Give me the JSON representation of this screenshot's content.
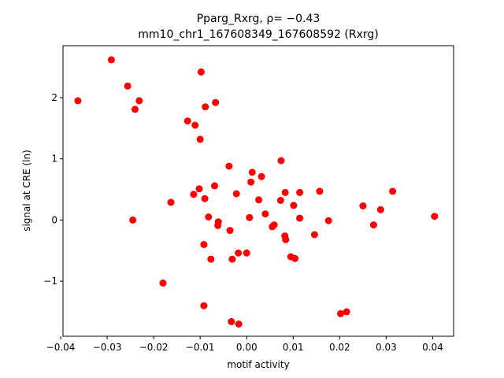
{
  "chart_data": {
    "type": "scatter",
    "title_line1": "Pparg_Rxrg, ρ= −0.43",
    "title_line2": "mm10_chr1_167608349_167608592 (Rxrg)",
    "xlabel": "motif activity",
    "ylabel": "signal at CRE (ln)",
    "xlim": [
      -0.0395,
      0.0445
    ],
    "ylim": [
      -1.9,
      2.85
    ],
    "x_ticks": [
      -0.04,
      -0.03,
      -0.02,
      -0.01,
      0.0,
      0.01,
      0.02,
      0.03,
      0.04
    ],
    "x_tick_labels": [
      "−0.04",
      "−0.03",
      "−0.02",
      "−0.01",
      "0.00",
      "0.01",
      "0.02",
      "0.03",
      "0.04"
    ],
    "y_ticks": [
      -1,
      0,
      1,
      2
    ],
    "y_tick_labels": [
      "−1",
      "0",
      "1",
      "2"
    ],
    "grid": false,
    "marker_color": "#ff0000",
    "points": [
      {
        "x": -0.0363,
        "y": 1.95
      },
      {
        "x": -0.0291,
        "y": 2.62
      },
      {
        "x": -0.0256,
        "y": 2.19
      },
      {
        "x": -0.024,
        "y": 1.81
      },
      {
        "x": -0.0231,
        "y": 1.95
      },
      {
        "x": -0.0245,
        "y": 0.0
      },
      {
        "x": -0.018,
        "y": -1.03
      },
      {
        "x": -0.0163,
        "y": 0.29
      },
      {
        "x": -0.0127,
        "y": 1.62
      },
      {
        "x": -0.0111,
        "y": 1.55
      },
      {
        "x": -0.0098,
        "y": 2.42
      },
      {
        "x": -0.01,
        "y": 1.32
      },
      {
        "x": -0.0089,
        "y": 1.85
      },
      {
        "x": -0.0067,
        "y": 1.92
      },
      {
        "x": -0.0114,
        "y": 0.42
      },
      {
        "x": -0.0102,
        "y": 0.51
      },
      {
        "x": -0.009,
        "y": 0.35
      },
      {
        "x": -0.0069,
        "y": 0.56
      },
      {
        "x": -0.0082,
        "y": 0.05
      },
      {
        "x": -0.0061,
        "y": -0.03
      },
      {
        "x": -0.0062,
        "y": -0.09
      },
      {
        "x": -0.0092,
        "y": -0.4
      },
      {
        "x": -0.0077,
        "y": -0.64
      },
      {
        "x": -0.0092,
        "y": -1.4
      },
      {
        "x": -0.0038,
        "y": 0.88
      },
      {
        "x": -0.0022,
        "y": 0.43
      },
      {
        "x": -0.0036,
        "y": -0.17
      },
      {
        "x": -0.0031,
        "y": -0.64
      },
      {
        "x": -0.0018,
        "y": -0.54
      },
      {
        "x": 0.0,
        "y": -0.54
      },
      {
        "x": -0.0033,
        "y": -1.66
      },
      {
        "x": -0.0017,
        "y": -1.7
      },
      {
        "x": 0.0012,
        "y": 0.78
      },
      {
        "x": 0.0009,
        "y": 0.62
      },
      {
        "x": 0.0032,
        "y": 0.71
      },
      {
        "x": 0.0026,
        "y": 0.33
      },
      {
        "x": 0.004,
        "y": 0.1
      },
      {
        "x": 0.0006,
        "y": 0.04
      },
      {
        "x": 0.0074,
        "y": 0.97
      },
      {
        "x": 0.0073,
        "y": 0.32
      },
      {
        "x": 0.0083,
        "y": 0.45
      },
      {
        "x": 0.0101,
        "y": 0.24
      },
      {
        "x": 0.0114,
        "y": 0.45
      },
      {
        "x": 0.0114,
        "y": 0.03
      },
      {
        "x": 0.0055,
        "y": -0.11
      },
      {
        "x": 0.0059,
        "y": -0.08
      },
      {
        "x": 0.0082,
        "y": -0.26
      },
      {
        "x": 0.0084,
        "y": -0.32
      },
      {
        "x": 0.0095,
        "y": -0.6
      },
      {
        "x": 0.0104,
        "y": -0.63
      },
      {
        "x": 0.0146,
        "y": -0.24
      },
      {
        "x": 0.0157,
        "y": 0.47
      },
      {
        "x": 0.0176,
        "y": -0.01
      },
      {
        "x": 0.0202,
        "y": -1.53
      },
      {
        "x": 0.0215,
        "y": -1.5
      },
      {
        "x": 0.025,
        "y": 0.23
      },
      {
        "x": 0.0273,
        "y": -0.08
      },
      {
        "x": 0.0288,
        "y": 0.17
      },
      {
        "x": 0.0314,
        "y": 0.47
      },
      {
        "x": 0.0404,
        "y": 0.06
      }
    ]
  }
}
